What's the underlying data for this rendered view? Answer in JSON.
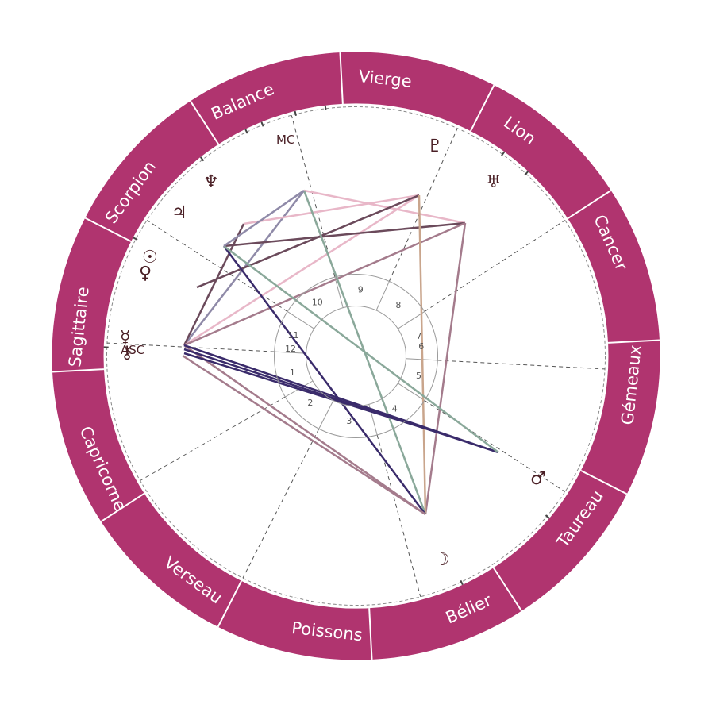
{
  "colors": {
    "zodiac_ring": "#b0346f",
    "zodiac_text": "#ffffff",
    "ring_divider": "#ffffff",
    "house_cusp": "#555555",
    "glyph": "#4a1f25"
  },
  "signs": [
    {
      "key": "scorpion",
      "label": "Scorpion"
    },
    {
      "key": "balance",
      "label": "Balance"
    },
    {
      "key": "vierge",
      "label": "Vierge"
    },
    {
      "key": "lion",
      "label": "Lion"
    },
    {
      "key": "cancer",
      "label": "Cancer"
    },
    {
      "key": "gemeaux",
      "label": "Gémeaux"
    },
    {
      "key": "taureau",
      "label": "Taureau"
    },
    {
      "key": "belier",
      "label": "Bélier"
    },
    {
      "key": "poissons",
      "label": "Poissons"
    },
    {
      "key": "verseau",
      "label": "Verseau"
    },
    {
      "key": "capricorne",
      "label": "Capricorne"
    },
    {
      "key": "sagittaire",
      "label": "Sagittaire"
    }
  ],
  "angles": {
    "asc": "ASC",
    "mc": "MC"
  },
  "houses": [
    "1",
    "2",
    "3",
    "4",
    "5",
    "6",
    "7",
    "8",
    "9",
    "10",
    "11",
    "12"
  ],
  "planets": [
    {
      "key": "pluto",
      "glyph": "♇",
      "icon": "pluto-icon"
    },
    {
      "key": "uranus",
      "glyph": "♅",
      "icon": "uranus-icon"
    },
    {
      "key": "neptune",
      "glyph": "♆",
      "icon": "neptune-icon"
    },
    {
      "key": "jupiter",
      "glyph": "♃",
      "icon": "jupiter-icon"
    },
    {
      "key": "sun",
      "glyph": "☉",
      "icon": "sun-icon"
    },
    {
      "key": "venus",
      "glyph": "♀",
      "icon": "venus-icon"
    },
    {
      "key": "mercury",
      "glyph": "☿",
      "icon": "mercury-icon"
    },
    {
      "key": "chiron",
      "glyph": "⚷",
      "icon": "chiron-icon"
    },
    {
      "key": "mars",
      "glyph": "♂",
      "icon": "mars-icon"
    },
    {
      "key": "moon",
      "glyph": "☽",
      "icon": "moon-icon"
    }
  ],
  "aspect_colors": [
    "#e8b7c8",
    "#8f8aa8",
    "#6b4a5b",
    "#3a2b6b",
    "#8aa89a",
    "#c9a58c",
    "#a47b8c",
    "#5c3d64"
  ]
}
